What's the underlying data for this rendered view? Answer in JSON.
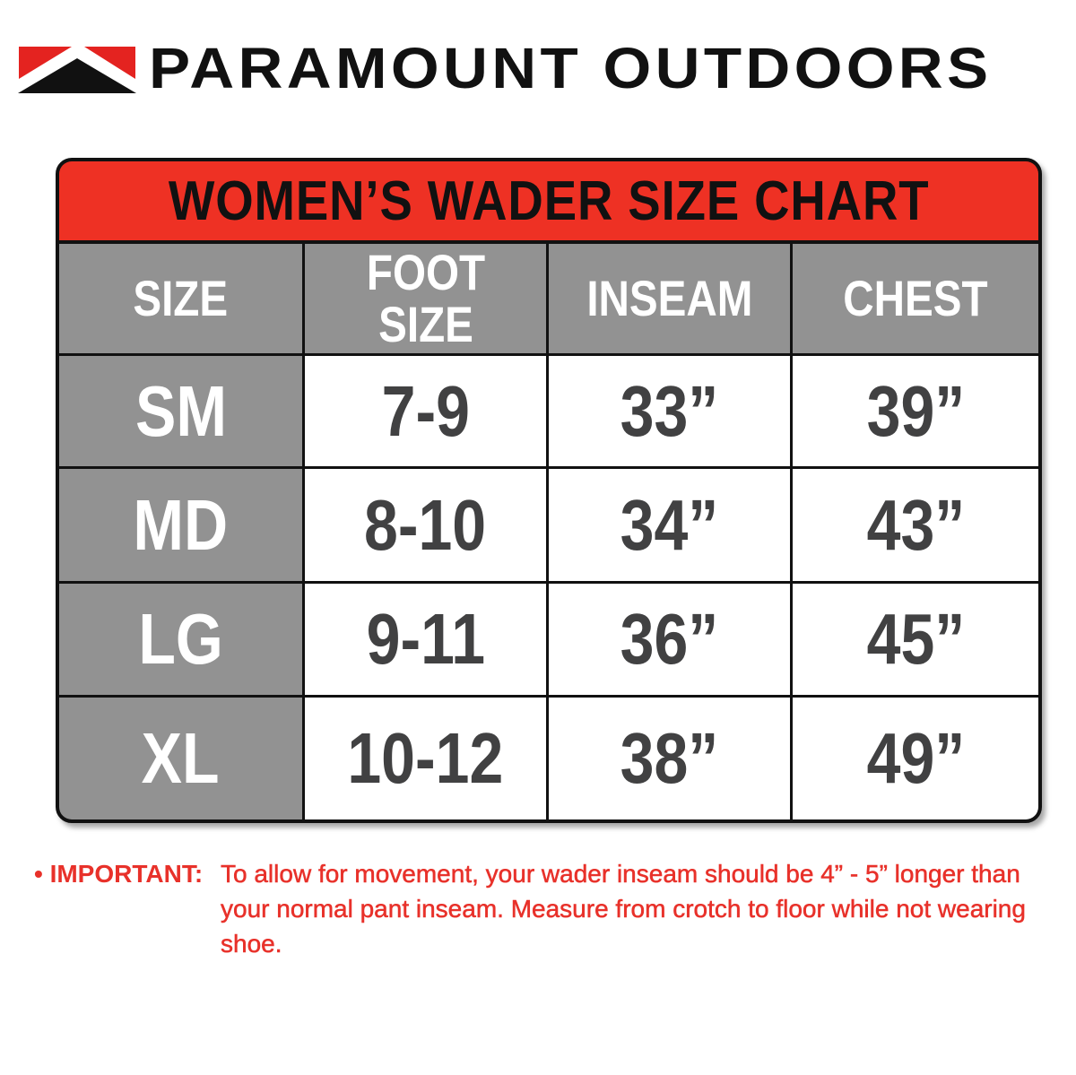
{
  "brand": {
    "name": "PARAMOUNT OUTDOORS",
    "logo_icon": "mountain-logo-icon",
    "colors": {
      "red": "#ee3124",
      "black": "#111111",
      "gray": "#929292",
      "value_text": "#414142"
    }
  },
  "chart": {
    "title": "WOMEN’S WADER SIZE CHART",
    "headers": [
      "SIZE",
      "FOOT SIZE",
      "INSEAM",
      "CHEST"
    ],
    "rows": [
      {
        "size": "SM",
        "foot": "7-9",
        "inseam": "33”",
        "chest": "39”"
      },
      {
        "size": "MD",
        "foot": "8-10",
        "inseam": "34”",
        "chest": "43”"
      },
      {
        "size": "LG",
        "foot": "9-11",
        "inseam": "36”",
        "chest": "45”"
      },
      {
        "size": "XL",
        "foot": "10-12",
        "inseam": "38”",
        "chest": "49”"
      }
    ]
  },
  "note": {
    "label": "• IMPORTANT:",
    "text": "To allow for movement, your wader inseam should be 4” - 5” longer than your normal pant inseam. Measure from crotch to floor while not wearing shoe."
  }
}
